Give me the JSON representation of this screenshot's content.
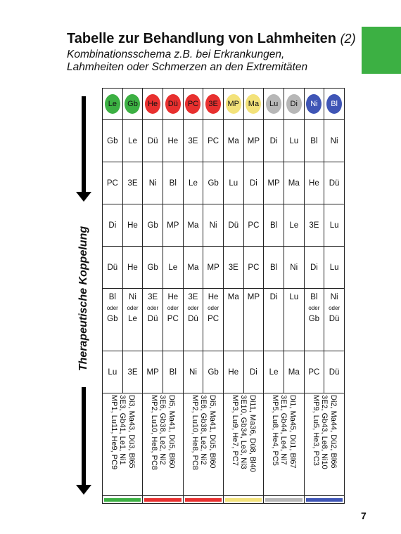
{
  "header": {
    "title": "Tabelle zur Behandlung von Lahmheiten",
    "title_num": "(2)",
    "subtitle_line1": "Kombinationsschema z.B. bei Erkrankungen,",
    "subtitle_line2": "Lahmheiten oder Schmerzen an den Extremitäten"
  },
  "side_label": "Therapeutische Koppelung",
  "colors": {
    "green": "#3cb043",
    "red": "#e8302f",
    "yellow": "#f3e27a",
    "gray": "#b7b7b7",
    "blue": "#3f55b6",
    "tab": "#3cb043"
  },
  "table": {
    "header": [
      "Le",
      "Gb",
      "He",
      "Dü",
      "PC",
      "3E",
      "MP",
      "Ma",
      "Lu",
      "Di",
      "Ni",
      "Bl"
    ],
    "rows": [
      [
        "Gb",
        "Le",
        "Dü",
        "He",
        "3E",
        "PC",
        "Ma",
        "MP",
        "Di",
        "Lu",
        "Bl",
        "Ni"
      ],
      [
        "PC",
        "3E",
        "Ni",
        "Bl",
        "Le",
        "Gb",
        "Lu",
        "Di",
        "MP",
        "Ma",
        "He",
        "Dü"
      ],
      [
        "Di",
        "He",
        "Gb",
        "MP",
        "Ma",
        "Ni",
        "Dü",
        "PC",
        "Bl",
        "Le",
        "3E",
        "Lu"
      ],
      [
        "Dü",
        "He",
        "Gb",
        "Le",
        "Ma",
        "MP",
        "3E",
        "PC",
        "Bl",
        "Ni",
        "Di",
        "Lu"
      ]
    ],
    "oder_row": [
      {
        "top": "Bl",
        "mid": "oder",
        "bot": "Gb"
      },
      {
        "top": "Ni",
        "mid": "oder",
        "bot": "Le"
      },
      {
        "top": "3E",
        "mid": "oder",
        "bot": "Dü"
      },
      {
        "top": "He",
        "mid": "oder",
        "bot": "PC"
      },
      {
        "top": "3E",
        "mid": "oder",
        "bot": "Dü"
      },
      {
        "top": "He",
        "mid": "oder",
        "bot": "PC"
      },
      {
        "top": "Ma",
        "mid": "",
        "bot": ""
      },
      {
        "top": "MP",
        "mid": "",
        "bot": ""
      },
      {
        "top": "Di",
        "mid": "",
        "bot": ""
      },
      {
        "top": "Lu",
        "mid": "",
        "bot": ""
      },
      {
        "top": "Bl",
        "mid": "oder",
        "bot": "Gb"
      },
      {
        "top": "Ni",
        "mid": "oder",
        "bot": "Dü"
      }
    ],
    "last_row": [
      "Lu",
      "3E",
      "MP",
      "Bl",
      "Ni",
      "Gb",
      "He",
      "Di",
      "Le",
      "Ma",
      "PC",
      "Dü"
    ],
    "combos": [
      {
        "lines": [
          "Di3, Ma43, Dü3, Bl65",
          "3E3, Gb41, Le1, Ni1",
          "MP1, Lu11, He9, PC9"
        ]
      },
      {
        "lines": [
          "Di5, Ma41, Dü5, Bl60",
          "3E6, Gb38, Le2, Ni2",
          "MP2, Lu10, He8, PC8"
        ]
      },
      {
        "lines": [
          "Di5, Ma41, Dü5, Bl60",
          "3E6, Gb38, Le2, Ni2",
          "MP2, Lu10, He8, PC8"
        ]
      },
      {
        "lines": [
          "Di11, Ma36, Dü8, Bl40",
          "3E10, Gb34, Le3, Ni3",
          "MP3, Lu9, He7, PC7"
        ]
      },
      {
        "lines": [
          "Di1, Ma45, Dü1, Bl67",
          "3E1, Gb44, Le4, Ni7",
          "MP5, Lu8, He4, PC5"
        ]
      },
      {
        "lines": [
          "Di2, Ma44, Dü2, Bl66",
          "3E2, Gb43, Le8, Ni10",
          "MP9, Lu5, He3, PC3"
        ]
      }
    ]
  },
  "page_number": "7"
}
